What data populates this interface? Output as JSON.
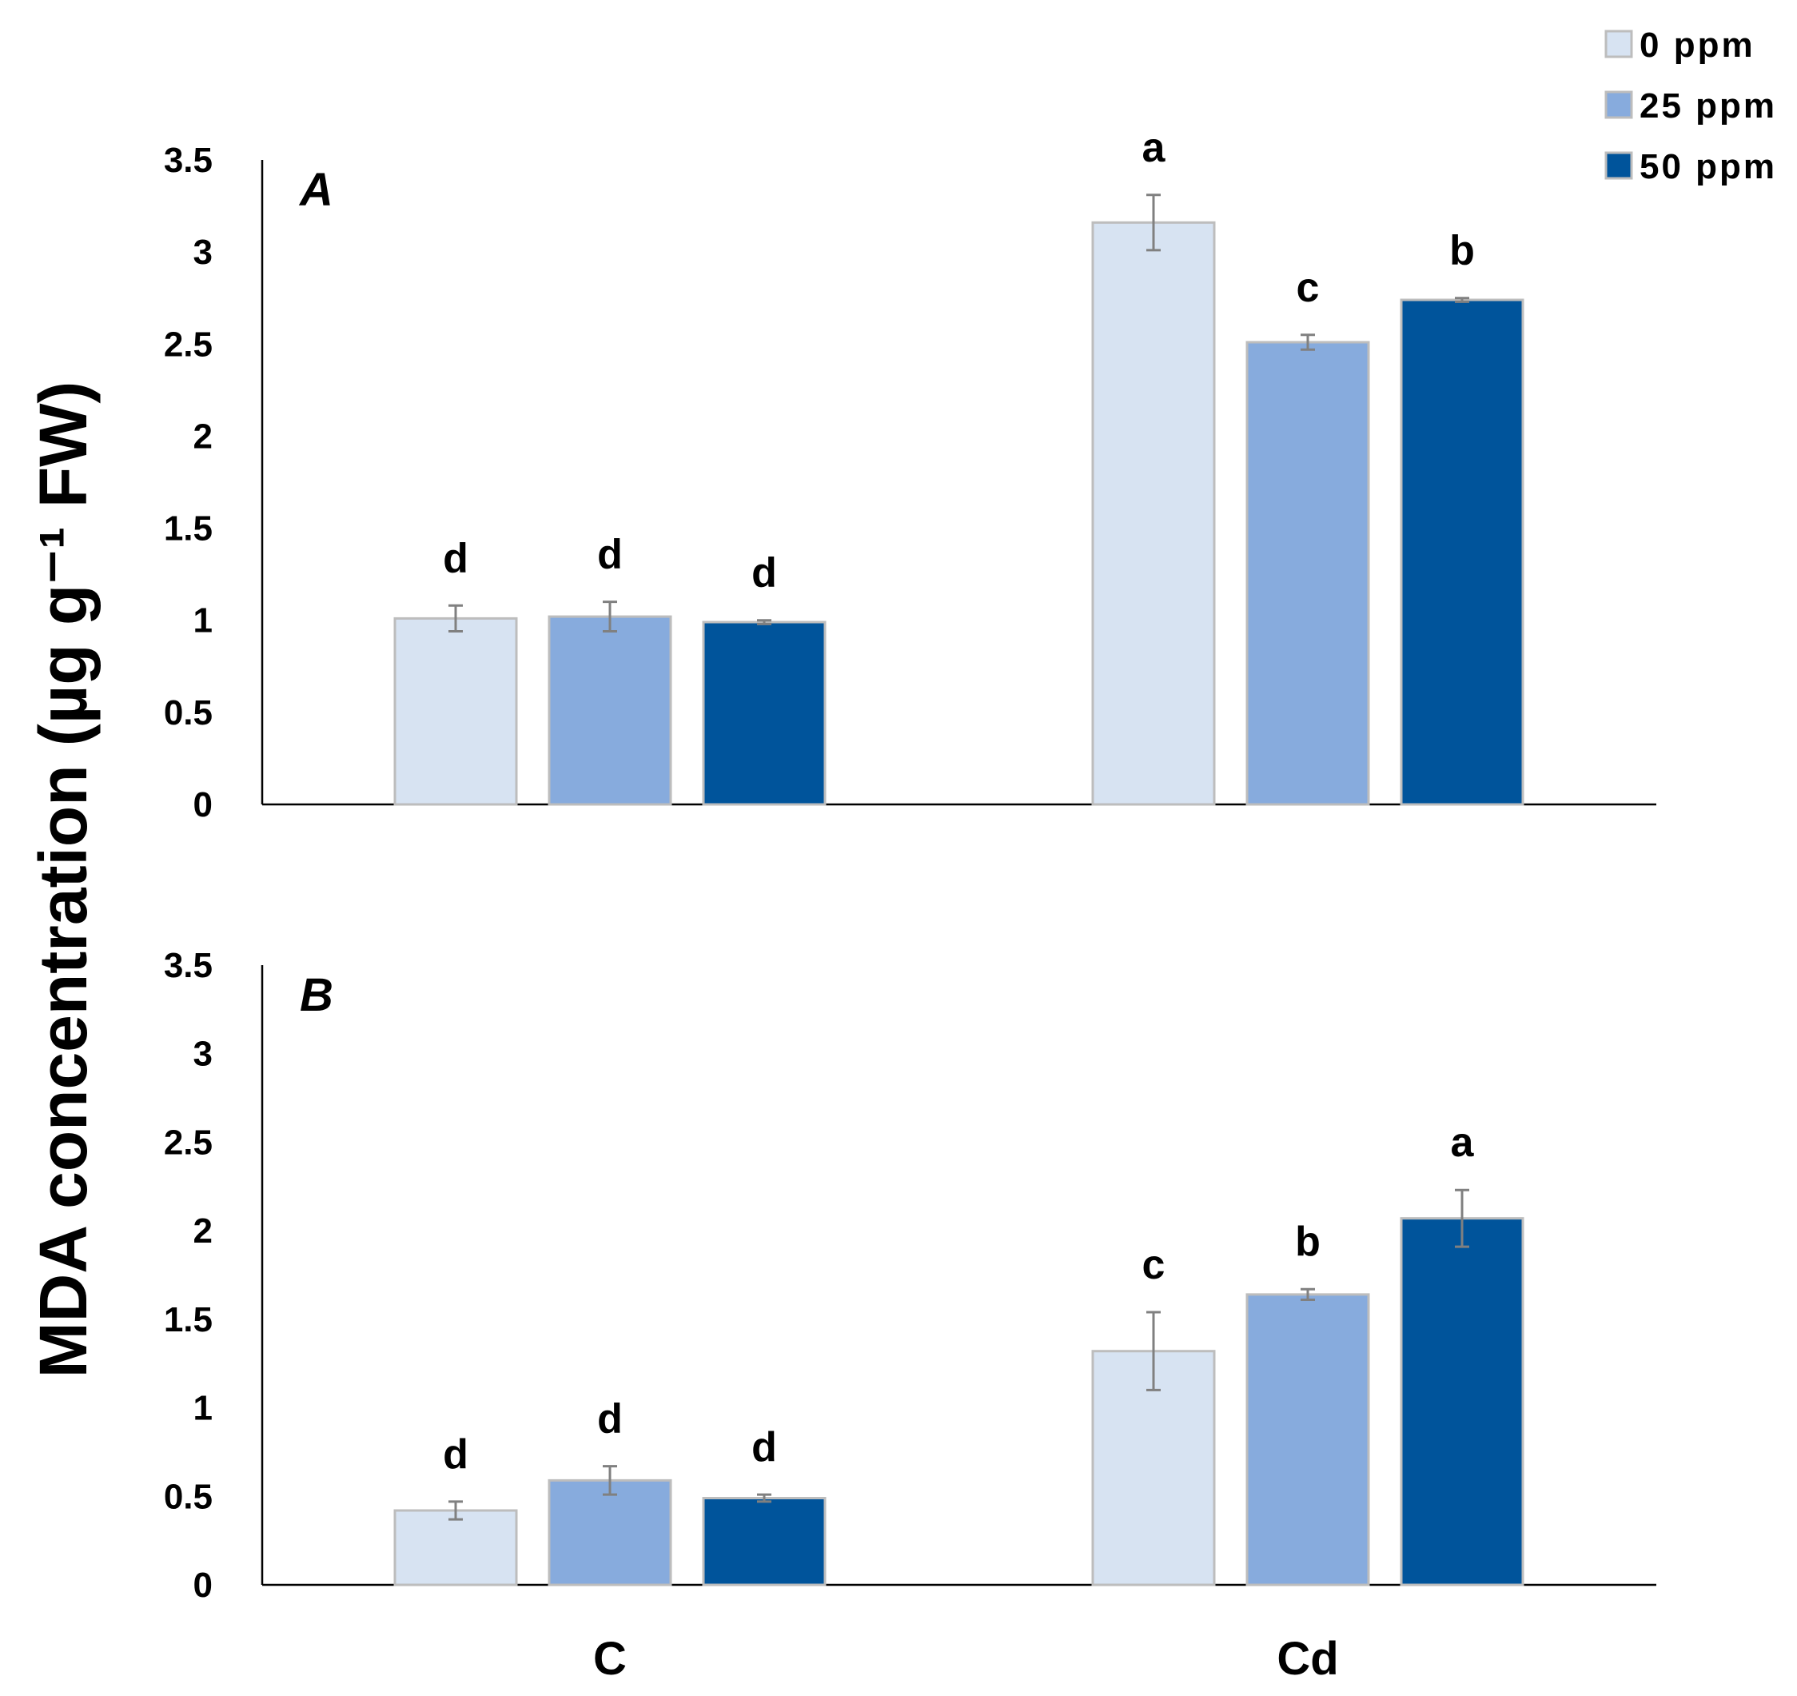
{
  "chart_data": {
    "type": "bar",
    "ylabel": "MDA concentration (µg g⁻¹ FW)",
    "ylim": [
      0,
      3.5
    ],
    "yticks": [
      "0",
      "0.5",
      "1",
      "1.5",
      "2",
      "2.5",
      "3",
      "3.5"
    ],
    "categories": [
      "C",
      "Cd"
    ],
    "legend_position": "top-right",
    "colors": {
      "0 ppm": "#d7e3f2",
      "25 ppm": "#87abdd",
      "50 ppm": "#00549b"
    },
    "panels": [
      {
        "label": "A",
        "series": [
          {
            "name": "0 ppm",
            "values": [
              1.01,
              3.16
            ],
            "errors": [
              0.07,
              0.15
            ],
            "letters": [
              "d",
              "a"
            ]
          },
          {
            "name": "25 ppm",
            "values": [
              1.02,
              2.51
            ],
            "errors": [
              0.08,
              0.04
            ],
            "letters": [
              "d",
              "c"
            ]
          },
          {
            "name": "50 ppm",
            "values": [
              0.99,
              2.74
            ],
            "errors": [
              0.01,
              0.01
            ],
            "letters": [
              "d",
              "b"
            ]
          }
        ]
      },
      {
        "label": "B",
        "series": [
          {
            "name": "0 ppm",
            "values": [
              0.42,
              1.32
            ],
            "errors": [
              0.05,
              0.22
            ],
            "letters": [
              "d",
              "c"
            ]
          },
          {
            "name": "25 ppm",
            "values": [
              0.59,
              1.64
            ],
            "errors": [
              0.08,
              0.03
            ],
            "letters": [
              "d",
              "b"
            ]
          },
          {
            "name": "50 ppm",
            "values": [
              0.49,
              2.07
            ],
            "errors": [
              0.02,
              0.16
            ],
            "letters": [
              "d",
              "a"
            ]
          }
        ]
      }
    ]
  }
}
